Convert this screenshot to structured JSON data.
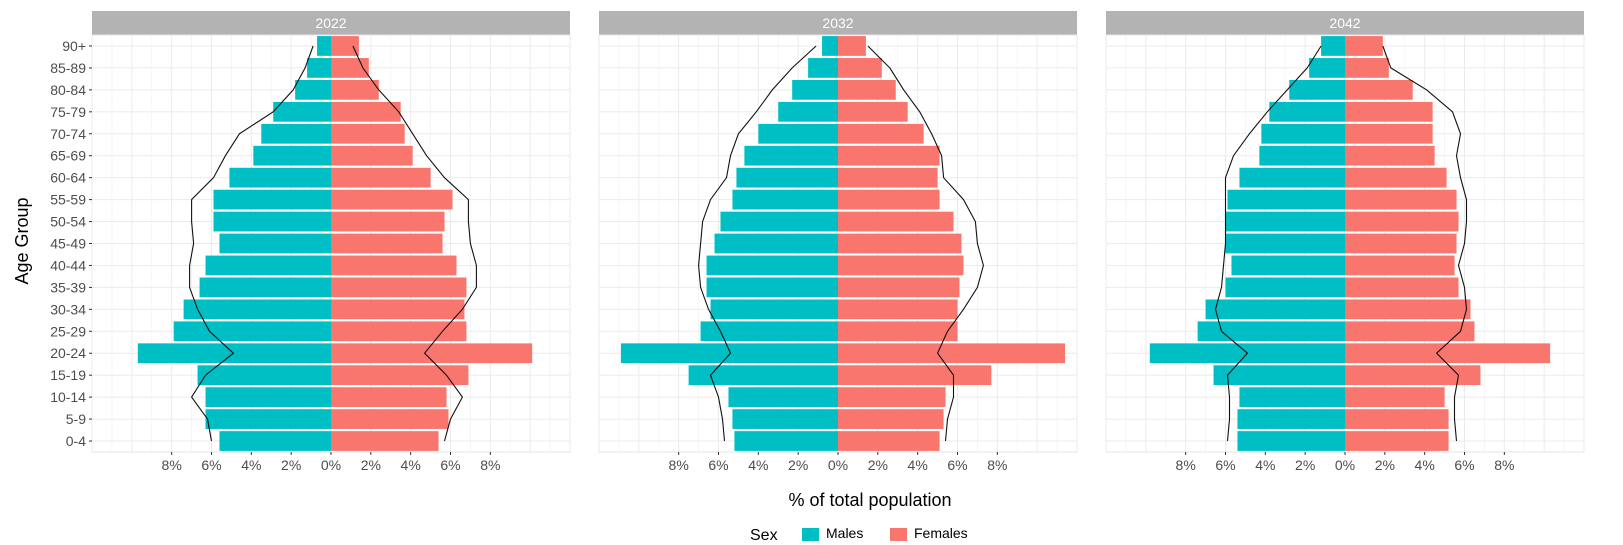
{
  "chart_data": {
    "type": "bar",
    "subtype": "population-pyramid-faceted",
    "xlabel": "% of total population",
    "ylabel": "Age Group",
    "x_ticks": [
      "8%",
      "6%",
      "4%",
      "2%",
      "0%",
      "2%",
      "4%",
      "6%",
      "8%"
    ],
    "xlim": [
      -12,
      12
    ],
    "grid": true,
    "legend": {
      "title": "Sex",
      "position": "bottom",
      "entries": [
        {
          "label": "Males",
          "color": "#00BFC4"
        },
        {
          "label": "Females",
          "color": "#F8766D"
        }
      ]
    },
    "categories": [
      "0-4",
      "5-9",
      "10-14",
      "15-19",
      "20-24",
      "25-29",
      "30-34",
      "35-39",
      "40-44",
      "45-49",
      "50-54",
      "55-59",
      "60-64",
      "65-69",
      "70-74",
      "75-79",
      "80-84",
      "85-89",
      "90+"
    ],
    "facets": [
      {
        "label": "2022",
        "series": [
          {
            "name": "Males",
            "values": [
              -5.6,
              -6.3,
              -6.3,
              -6.7,
              -9.7,
              -7.9,
              -7.4,
              -6.6,
              -6.3,
              -5.6,
              -5.9,
              -5.9,
              -5.1,
              -3.9,
              -3.5,
              -2.9,
              -1.8,
              -1.2,
              -0.7
            ]
          },
          {
            "name": "Females",
            "values": [
              5.4,
              5.9,
              5.8,
              6.9,
              10.1,
              6.8,
              6.7,
              6.8,
              6.3,
              5.6,
              5.7,
              6.1,
              5.0,
              4.1,
              3.7,
              3.5,
              2.4,
              1.9,
              1.4
            ]
          },
          {
            "name": "Males outline",
            "values": [
              -6.0,
              -6.2,
              -7.0,
              -6.3,
              -4.9,
              -6.1,
              -6.7,
              -7.1,
              -7.1,
              -6.9,
              -7.0,
              -7.0,
              -5.9,
              -5.3,
              -4.6,
              -2.9,
              -1.9,
              -1.3,
              -0.9
            ]
          },
          {
            "name": "Females outline",
            "values": [
              5.7,
              6.0,
              6.6,
              5.8,
              4.7,
              5.6,
              6.6,
              7.3,
              7.3,
              7.0,
              6.9,
              6.9,
              5.7,
              4.8,
              4.1,
              3.4,
              2.4,
              1.6,
              1.1
            ]
          }
        ]
      },
      {
        "label": "2032",
        "series": [
          {
            "name": "Males",
            "values": [
              -5.2,
              -5.3,
              -5.5,
              -7.5,
              -10.9,
              -6.9,
              -6.4,
              -6.6,
              -6.6,
              -6.2,
              -5.9,
              -5.3,
              -5.1,
              -4.7,
              -4.0,
              -3.0,
              -2.3,
              -1.5,
              -0.8
            ]
          },
          {
            "name": "Females",
            "values": [
              5.1,
              5.3,
              5.4,
              7.7,
              11.4,
              6.0,
              6.0,
              6.1,
              6.3,
              6.2,
              5.8,
              5.1,
              5.0,
              5.1,
              4.3,
              3.5,
              2.9,
              2.2,
              1.4
            ]
          },
          {
            "name": "Males outline",
            "values": [
              -5.7,
              -5.8,
              -6.0,
              -6.4,
              -5.4,
              -5.9,
              -6.5,
              -6.9,
              -7.0,
              -6.9,
              -6.8,
              -6.4,
              -5.6,
              -5.4,
              -5.0,
              -4.1,
              -3.3,
              -2.3,
              -1.1
            ]
          },
          {
            "name": "Females outline",
            "values": [
              5.4,
              5.5,
              5.8,
              5.8,
              5.0,
              5.5,
              6.3,
              7.0,
              7.3,
              7.0,
              6.9,
              6.3,
              5.3,
              5.2,
              4.7,
              4.1,
              3.3,
              2.6,
              1.5
            ]
          }
        ]
      },
      {
        "label": "2042",
        "series": [
          {
            "name": "Males",
            "values": [
              -5.4,
              -5.4,
              -5.3,
              -6.6,
              -9.8,
              -7.4,
              -7.0,
              -6.0,
              -5.7,
              -6.0,
              -6.0,
              -5.9,
              -5.3,
              -4.3,
              -4.2,
              -3.8,
              -2.8,
              -1.8,
              -1.2
            ]
          },
          {
            "name": "Females",
            "values": [
              5.2,
              5.2,
              5.0,
              6.8,
              10.3,
              6.5,
              6.3,
              5.7,
              5.5,
              5.6,
              5.7,
              5.6,
              5.1,
              4.5,
              4.4,
              4.4,
              3.4,
              2.2,
              1.9
            ]
          },
          {
            "name": "Males outline",
            "values": [
              -5.9,
              -5.8,
              -5.8,
              -5.9,
              -4.9,
              -6.2,
              -6.5,
              -6.2,
              -6.1,
              -6.0,
              -6.0,
              -6.0,
              -6.0,
              -5.6,
              -4.8,
              -3.9,
              -2.9,
              -1.9,
              -1.2
            ]
          },
          {
            "name": "Females outline",
            "values": [
              5.6,
              5.5,
              5.5,
              5.7,
              4.6,
              5.8,
              6.1,
              6.0,
              5.7,
              6.0,
              6.1,
              6.1,
              5.8,
              5.6,
              5.8,
              5.4,
              4.1,
              2.3,
              1.9
            ]
          }
        ]
      }
    ]
  }
}
